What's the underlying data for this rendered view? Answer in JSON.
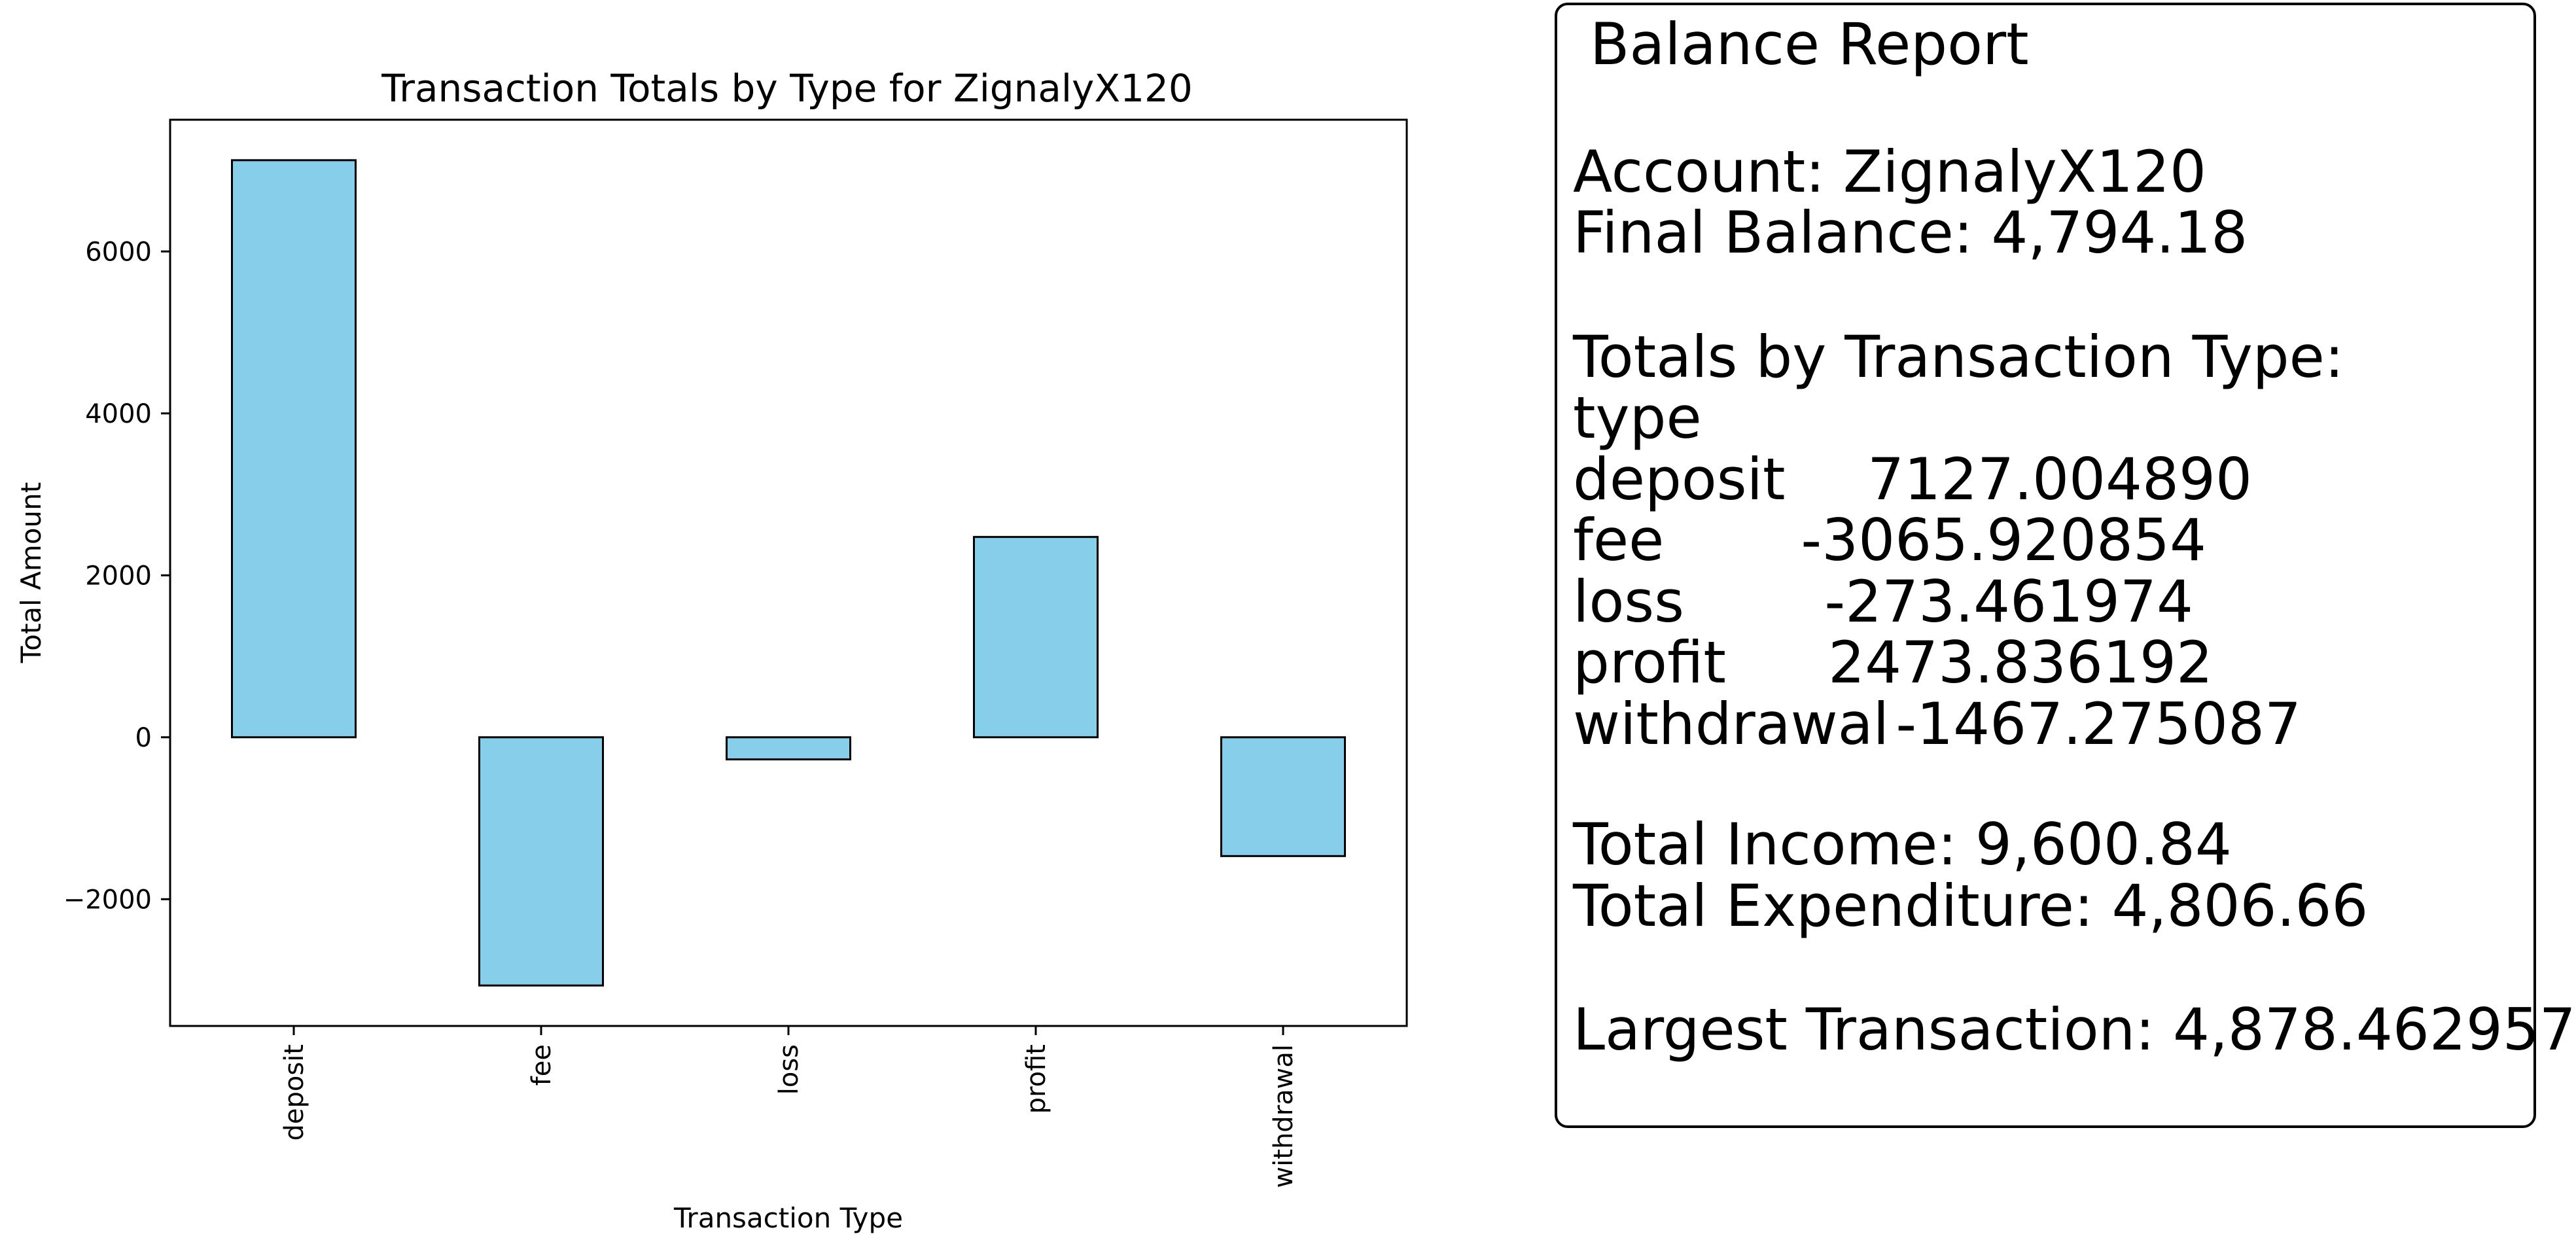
{
  "chart_data": {
    "type": "bar",
    "title": "Transaction Totals by Type for ZignalyX120",
    "xlabel": "Transaction Type",
    "ylabel": "Total Amount",
    "categories": [
      "deposit",
      "fee",
      "loss",
      "profit",
      "withdrawal"
    ],
    "values": [
      7127.00489,
      -3065.920854,
      -273.461974,
      2473.836192,
      -1467.275087
    ],
    "yticks": [
      -2000,
      0,
      2000,
      4000,
      6000
    ],
    "ytick_labels": [
      "−2000",
      "0",
      "2000",
      "4000",
      "6000"
    ],
    "ylim": [
      -3565.57,
      7626.65
    ],
    "bar_color": "#87ceeb",
    "edge_color": "#000000",
    "grid": false,
    "legend": "none"
  },
  "report": {
    "title": "Balance Report",
    "account": "Account: ZignalyX120",
    "final_balance": "Final Balance: 4,794.18",
    "totals_header": "Totals by Transaction Type:",
    "type_label": "type",
    "totals": [
      {
        "name": "deposit",
        "value": "7127.004890"
      },
      {
        "name": "fee",
        "value": "-3065.920854"
      },
      {
        "name": "loss",
        "value": "-273.461974"
      },
      {
        "name": "profit",
        "value": "2473.836192"
      },
      {
        "name": "withdrawal",
        "value": "-1467.275087"
      }
    ],
    "total_income": "Total Income: 9,600.84",
    "total_expenditure": "Total Expenditure: 4,806.66",
    "largest_transaction": "Largest Transaction: 4,878.462957"
  }
}
